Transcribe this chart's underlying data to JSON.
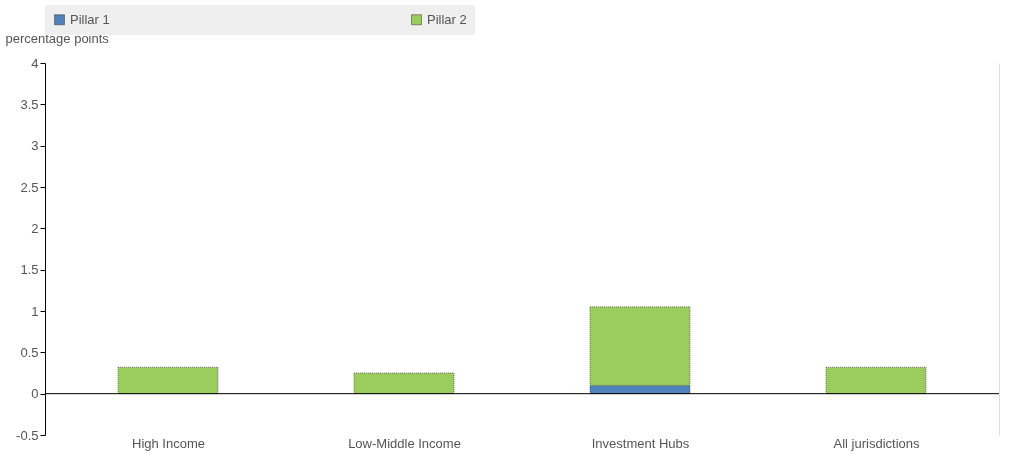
{
  "chart_data": {
    "type": "bar",
    "stacked": true,
    "ylabel": "percentage points",
    "categories": [
      "High Income",
      "Low-Middle Income",
      "Investment Hubs",
      "All jurisdictions"
    ],
    "series": [
      {
        "name": "Pillar 1",
        "color": "#4f81bd",
        "values": [
          null,
          null,
          0.1,
          null
        ]
      },
      {
        "name": "Pillar 2",
        "color": "#9bcc5e",
        "values": [
          0.32,
          0.25,
          0.95,
          0.32
        ]
      }
    ],
    "ylim": [
      -0.5,
      4
    ],
    "yticks": [
      -0.5,
      0,
      0.5,
      1,
      1.5,
      2,
      2.5,
      3,
      3.5,
      4
    ],
    "grid": true,
    "legend": "top"
  }
}
